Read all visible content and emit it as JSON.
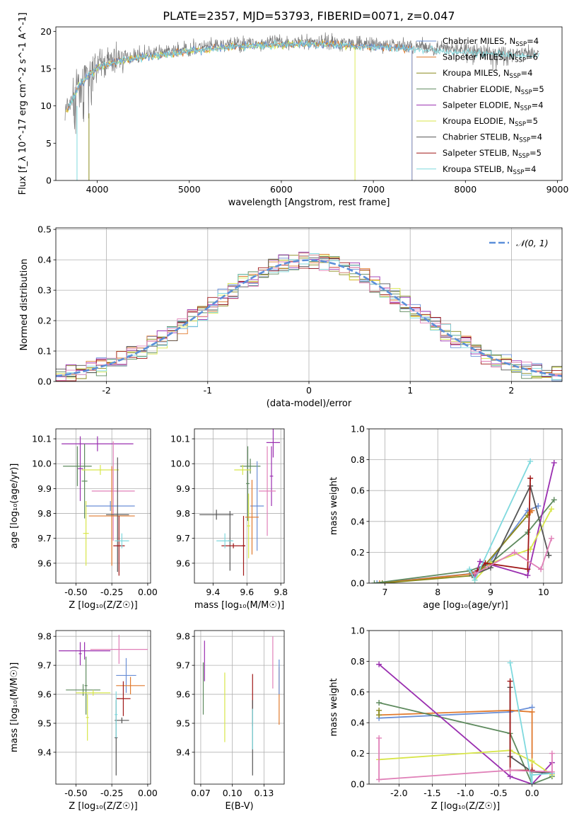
{
  "figure_title": "PLATE=2357, MJD=53793, FIBERID=0071, z=0.047",
  "colors": {
    "Chabrier MILES": "#6a8fd6",
    "Salpeter MILES": "#e07a2e",
    "Kroupa MILES": "#8a8a1e",
    "Chabrier ELODIE": "#5e8a5e",
    "Salpeter ELODIE": "#9a2fb0",
    "Kroupa ELODIE": "#d8e64a",
    "Chabrier STELIB": "#555555",
    "Salpeter STELIB": "#a01818",
    "Kroupa STELIB": "#7fd9de",
    "pink": "#e080b8",
    "gauss": "#5b8fd9"
  },
  "chart_data": [
    {
      "id": "spectrum",
      "type": "line",
      "xlabel": "wavelength [Angstrom, rest frame]",
      "ylabel": "Flux [f_λ 10^-17 erg cm^-2 s^-1 A^-1]",
      "xlim": [
        3550,
        9050
      ],
      "ylim": [
        0,
        20.6
      ],
      "xticks": [
        4000,
        5000,
        6000,
        7000,
        8000,
        9000
      ],
      "yticks": [
        0,
        5,
        10,
        15,
        20
      ],
      "legend_position": "upper right",
      "legend": [
        {
          "name": "Chabrier MILES",
          "nssp": 4
        },
        {
          "name": "Salpeter MILES",
          "nssp": 6
        },
        {
          "name": "Kroupa MILES",
          "nssp": 4
        },
        {
          "name": "Chabrier ELODIE",
          "nssp": 5
        },
        {
          "name": "Salpeter ELODIE",
          "nssp": 4
        },
        {
          "name": "Kroupa ELODIE",
          "nssp": 5
        },
        {
          "name": "Chabrier STELIB",
          "nssp": 4
        },
        {
          "name": "Salpeter STELIB",
          "nssp": 5
        },
        {
          "name": "Kroupa STELIB",
          "nssp": 4
        }
      ],
      "continuum": {
        "x": [
          3650,
          3800,
          4000,
          4300,
          4600,
          5000,
          5500,
          6000,
          6500,
          7000,
          7400,
          8000,
          8500,
          8800
        ],
        "y": [
          9,
          13,
          15.5,
          16.5,
          17,
          17.6,
          18.3,
          18.5,
          18.6,
          18.2,
          18,
          17.5,
          17,
          17
        ]
      }
    },
    {
      "id": "residuals",
      "type": "bar",
      "xlabel": "(data-model)/error",
      "ylabel": "Normed distribution",
      "xlim": [
        -2.5,
        2.5
      ],
      "ylim": [
        0,
        0.505
      ],
      "xticks": [
        -2,
        -1,
        0,
        1,
        2
      ],
      "yticks": [
        0.0,
        0.1,
        0.2,
        0.3,
        0.4,
        0.5
      ],
      "legend_label": "𝒩(0, 1)",
      "legend_position": "upper right",
      "bin_width": 0.1
    },
    {
      "id": "z-age",
      "type": "scatter",
      "xlabel": "Z [log₁₀(Z/Z☉)]",
      "ylabel": "age  [log₁₀(age/yr)]",
      "xlim": [
        -0.64,
        0.02
      ],
      "ylim": [
        9.52,
        10.14
      ],
      "xticks": [
        -0.5,
        -0.25,
        0.0
      ],
      "yticks": [
        9.6,
        9.7,
        9.8,
        9.9,
        10.0,
        10.1
      ],
      "points": [
        {
          "s": "Salpeter ELODIE",
          "x": -0.35,
          "xe": 0.25,
          "y": 10.08,
          "ye": 0.03
        },
        {
          "s": "Salpeter ELODIE",
          "x": -0.47,
          "xe": 0.02,
          "y": 9.98,
          "ye": 0.13
        },
        {
          "s": "Chabrier ELODIE",
          "x": -0.49,
          "xe": 0.1,
          "y": 9.99,
          "ye": 0.08
        },
        {
          "s": "Chabrier ELODIE",
          "x": -0.44,
          "xe": 0.02,
          "y": 9.93,
          "ye": 0.15
        },
        {
          "s": "Kroupa ELODIE",
          "x": -0.33,
          "xe": 0.13,
          "y": 9.975,
          "ye": 0.02
        },
        {
          "s": "Kroupa ELODIE",
          "x": -0.43,
          "xe": 0.02,
          "y": 9.72,
          "ye": 0.13
        },
        {
          "s": "pink",
          "x": -0.24,
          "xe": 0.15,
          "y": 9.89,
          "ye": 0.2
        },
        {
          "s": "Chabrier MILES",
          "x": -0.26,
          "xe": 0.17,
          "y": 9.83,
          "ye": 0.02
        },
        {
          "s": "Salpeter MILES",
          "x": -0.25,
          "xe": 0.16,
          "y": 9.79,
          "ye": 0.2
        },
        {
          "s": "Chabrier STELIB",
          "x": -0.21,
          "xe": 0.08,
          "y": 9.795,
          "ye": 0.23
        },
        {
          "s": "Salpeter STELIB",
          "x": -0.2,
          "xe": 0.04,
          "y": 9.67,
          "ye": 0.12
        },
        {
          "s": "Kroupa STELIB",
          "x": -0.18,
          "xe": 0.05,
          "y": 9.69,
          "ye": 0.03
        }
      ]
    },
    {
      "id": "mass-age",
      "type": "scatter",
      "xlabel": "mass [log₁₀(M/M☉)]",
      "ylabel": "",
      "xlim": [
        9.29,
        9.82
      ],
      "ylim": [
        9.52,
        10.14
      ],
      "xticks": [
        9.4,
        9.6,
        9.8
      ],
      "yticks": [
        9.6,
        9.7,
        9.8,
        9.9,
        10.0,
        10.1
      ],
      "points": [
        {
          "s": "Salpeter ELODIE",
          "x": 9.755,
          "xe": 0.04,
          "y": 10.085,
          "ye": 0.06
        },
        {
          "s": "Salpeter ELODIE",
          "x": 9.745,
          "xe": 0.01,
          "y": 9.95,
          "ye": 0.12
        },
        {
          "s": "Chabrier ELODIE",
          "x": 9.62,
          "xe": 0.06,
          "y": 9.99,
          "ye": 0.03
        },
        {
          "s": "Chabrier ELODIE",
          "x": 9.605,
          "xe": 0.01,
          "y": 9.92,
          "ye": 0.15
        },
        {
          "s": "Kroupa ELODIE",
          "x": 9.575,
          "xe": 0.05,
          "y": 9.975,
          "ye": 0.02
        },
        {
          "s": "Kroupa ELODIE",
          "x": 9.61,
          "xe": 0.01,
          "y": 9.75,
          "ye": 0.13
        },
        {
          "s": "pink",
          "x": 9.72,
          "xe": 0.05,
          "y": 9.89,
          "ye": 0.18
        },
        {
          "s": "Chabrier MILES",
          "x": 9.66,
          "xe": 0.04,
          "y": 9.83,
          "ye": 0.18
        },
        {
          "s": "Salpeter MILES",
          "x": 9.63,
          "xe": 0.04,
          "y": 9.785,
          "ye": 0.15
        },
        {
          "s": "Chabrier STELIB",
          "x": 9.42,
          "xe": 0.1,
          "y": 9.795,
          "ye": 0.02
        },
        {
          "s": "Chabrier STELIB",
          "x": 9.5,
          "xe": 0.01,
          "y": 9.69,
          "ye": 0.12
        },
        {
          "s": "Salpeter STELIB",
          "x": 9.52,
          "xe": 0.07,
          "y": 9.67,
          "ye": 0.01
        },
        {
          "s": "Salpeter STELIB",
          "x": 9.58,
          "xe": 0.01,
          "y": 9.67,
          "ye": 0.12
        },
        {
          "s": "Kroupa STELIB",
          "x": 9.47,
          "xe": 0.05,
          "y": 9.69,
          "ye": 0.03
        }
      ]
    },
    {
      "id": "age-weight",
      "type": "line",
      "xlabel": "age  [log₁₀(age/yr)]",
      "ylabel": "mass weight",
      "xlim": [
        6.7,
        10.35
      ],
      "ylim": [
        0,
        1.0
      ],
      "xticks": [
        7,
        8,
        9,
        10
      ],
      "yticks": [
        0.0,
        0.2,
        0.4,
        0.6,
        0.8,
        1.0
      ],
      "series": [
        {
          "name": "Chabrier MILES",
          "x": [
            6.85,
            8.6,
            8.95,
            9.7,
            9.9
          ],
          "y": [
            0.0,
            0.06,
            0.12,
            0.47,
            0.5
          ]
        },
        {
          "name": "Salpeter MILES",
          "x": [
            6.9,
            8.65,
            8.9,
            9.75,
            9.78
          ],
          "y": [
            0.0,
            0.06,
            0.12,
            0.46,
            0.47
          ]
        },
        {
          "name": "Kroupa MILES",
          "x": [
            6.95,
            8.7,
            8.85,
            9.7
          ],
          "y": [
            0.0,
            0.05,
            0.1,
            0.44
          ]
        },
        {
          "name": "Chabrier ELODIE",
          "x": [
            6.8,
            8.6,
            9.0,
            9.7,
            10.2
          ],
          "y": [
            0.0,
            0.08,
            0.13,
            0.33,
            0.54
          ]
        },
        {
          "name": "Salpeter ELODIE",
          "x": [
            8.7,
            8.8,
            9.7,
            10.2
          ],
          "y": [
            0.04,
            0.14,
            0.05,
            0.78
          ]
        },
        {
          "name": "Kroupa ELODIE",
          "x": [
            8.7,
            9.0,
            9.75,
            10.15
          ],
          "y": [
            0.02,
            0.13,
            0.22,
            0.48
          ]
        },
        {
          "name": "Chabrier STELIB",
          "x": [
            8.65,
            9.0,
            9.75,
            10.1
          ],
          "y": [
            0.05,
            0.1,
            0.63,
            0.18
          ]
        },
        {
          "name": "Salpeter STELIB",
          "x": [
            8.75,
            8.9,
            9.7,
            9.75
          ],
          "y": [
            0.08,
            0.13,
            0.09,
            0.68
          ]
        },
        {
          "name": "Kroupa STELIB",
          "x": [
            8.6,
            8.7,
            9.75
          ],
          "y": [
            0.09,
            0.02,
            0.79
          ]
        },
        {
          "name": "pink",
          "x": [
            8.7,
            9.45,
            9.95,
            10.15
          ],
          "y": [
            0.06,
            0.2,
            0.09,
            0.29
          ]
        }
      ]
    },
    {
      "id": "z-mass",
      "type": "scatter",
      "xlabel": "Z [log₁₀(Z/Z☉)]",
      "ylabel": "mass [log₁₀(M/M☉)]",
      "xlim": [
        -0.64,
        0.02
      ],
      "ylim": [
        9.29,
        9.82
      ],
      "xticks": [
        -0.5,
        -0.25,
        0.0
      ],
      "yticks": [
        9.4,
        9.5,
        9.6,
        9.7,
        9.8
      ],
      "points": [
        {
          "s": "Salpeter ELODIE",
          "x": -0.44,
          "xe": 0.18,
          "y": 9.75,
          "ye": 0.03
        },
        {
          "s": "Salpeter ELODIE",
          "x": -0.47,
          "xe": 0.01,
          "y": 9.74,
          "ye": 0.04
        },
        {
          "s": "pink",
          "x": -0.2,
          "xe": 0.2,
          "y": 9.755,
          "ye": 0.05
        },
        {
          "s": "Chabrier ELODIE",
          "x": -0.45,
          "xe": 0.12,
          "y": 9.615,
          "ye": 0.02
        },
        {
          "s": "Chabrier ELODIE",
          "x": -0.43,
          "xe": 0.01,
          "y": 9.63,
          "ye": 0.1
        },
        {
          "s": "Kroupa ELODIE",
          "x": -0.38,
          "xe": 0.12,
          "y": 9.605,
          "ye": 0.01
        },
        {
          "s": "Kroupa ELODIE",
          "x": -0.42,
          "xe": 0.01,
          "y": 9.52,
          "ye": 0.08
        },
        {
          "s": "Chabrier MILES",
          "x": -0.15,
          "xe": 0.07,
          "y": 9.665,
          "ye": 0.06
        },
        {
          "s": "Salpeter MILES",
          "x": -0.12,
          "xe": 0.1,
          "y": 9.63,
          "ye": 0.03
        },
        {
          "s": "Salpeter STELIB",
          "x": -0.17,
          "xe": 0.05,
          "y": 9.585,
          "ye": 0.06
        },
        {
          "s": "Chabrier STELIB",
          "x": -0.18,
          "xe": 0.05,
          "y": 9.51,
          "ye": 0.01
        },
        {
          "s": "Chabrier STELIB",
          "x": -0.22,
          "xe": 0.01,
          "y": 9.45,
          "ye": 0.13
        },
        {
          "s": "Kroupa STELIB",
          "x": -0.22,
          "xe": 0.01,
          "y": 9.53,
          "ye": 0.08
        }
      ]
    },
    {
      "id": "ebv-mass",
      "type": "scatter",
      "xlabel": "E(B-V)",
      "ylabel": "",
      "xlim": [
        0.07,
        0.141
      ],
      "ylim": [
        9.29,
        9.82
      ],
      "xticks": [
        0.075,
        0.1,
        0.125
      ],
      "yticks": [
        9.4,
        9.5,
        9.6,
        9.7,
        9.8
      ],
      "points": [
        {
          "s": "Salpeter ELODIE",
          "x": 0.078,
          "y": 9.715,
          "ye": 0.07
        },
        {
          "s": "Chabrier ELODIE",
          "x": 0.077,
          "y": 9.62,
          "ye": 0.09
        },
        {
          "s": "Kroupa ELODIE",
          "x": 0.094,
          "y": 9.555,
          "ye": 0.12
        },
        {
          "s": "Salpeter STELIB",
          "x": 0.116,
          "y": 9.58,
          "ye": 0.09
        },
        {
          "s": "Chabrier STELIB",
          "x": 0.116,
          "y": 9.45,
          "ye": 0.13
        },
        {
          "s": "Kroupa STELIB",
          "x": 0.116,
          "y": 9.48,
          "ye": 0.07
        },
        {
          "s": "pink",
          "x": 0.132,
          "y": 9.71,
          "ye": 0.09
        },
        {
          "s": "Salpeter MILES",
          "x": 0.137,
          "y": 9.595,
          "ye": 0.1
        },
        {
          "s": "Chabrier MILES",
          "x": 0.137,
          "y": 9.66,
          "ye": 0.06
        }
      ]
    },
    {
      "id": "z-weight",
      "type": "line",
      "xlabel": "Z [log₁₀(Z/Z☉)]",
      "ylabel": "mass weight",
      "xlim": [
        -2.45,
        0.45
      ],
      "ylim": [
        0,
        1.0
      ],
      "xticks": [
        -2.0,
        -1.5,
        -1.0,
        -0.5,
        0.0
      ],
      "yticks": [
        0.0,
        0.2,
        0.4,
        0.6,
        0.8,
        1.0
      ],
      "series": [
        {
          "name": "Chabrier MILES",
          "x": [
            -2.3,
            -0.33,
            0.0
          ],
          "y": [
            0.43,
            0.47,
            0.5
          ]
        },
        {
          "name": "Salpeter MILES",
          "x": [
            -2.3,
            -0.33,
            0.0,
            0.0
          ],
          "y": [
            0.45,
            0.48,
            0.47,
            0.0
          ]
        },
        {
          "name": "Kroupa MILES",
          "x": [
            -2.3,
            -2.3
          ],
          "y": [
            0.45,
            0.48
          ]
        },
        {
          "name": "Chabrier ELODIE",
          "x": [
            -2.3,
            -0.33,
            0.0,
            0.3
          ],
          "y": [
            0.53,
            0.33,
            0.0,
            0.05
          ]
        },
        {
          "name": "Salpeter ELODIE",
          "x": [
            -2.3,
            -0.33,
            0.0,
            0.3
          ],
          "y": [
            0.78,
            0.05,
            0.0,
            0.14
          ]
        },
        {
          "name": "Kroupa ELODIE",
          "x": [
            -2.3,
            -0.33,
            0.0,
            0.3
          ],
          "y": [
            0.16,
            0.22,
            0.15,
            0.06
          ]
        },
        {
          "name": "Chabrier STELIB",
          "x": [
            -0.33,
            -0.33,
            0.0,
            0.3
          ],
          "y": [
            0.63,
            0.18,
            0.08,
            0.07
          ]
        },
        {
          "name": "Salpeter STELIB",
          "x": [
            -0.33,
            -0.33,
            0.0,
            0.0
          ],
          "y": [
            0.67,
            0.09,
            0.09,
            0.0
          ]
        },
        {
          "name": "Kroupa STELIB",
          "x": [
            -0.33,
            0.0,
            0.0,
            0.3
          ],
          "y": [
            0.79,
            0.0,
            0.06,
            0.07
          ]
        },
        {
          "name": "pink",
          "x": [
            -2.3,
            -2.3,
            -0.33,
            0.3,
            0.3
          ],
          "y": [
            0.3,
            0.03,
            0.09,
            0.08,
            0.2
          ]
        }
      ]
    }
  ]
}
